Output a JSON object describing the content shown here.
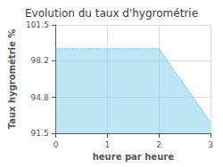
{
  "chart_data": {
    "type": "area",
    "title": "Evolution du taux d'hygrométrie",
    "xlabel": "heure par heure",
    "ylabel": "Taux hygrométrie %",
    "x": [
      0,
      2,
      3
    ],
    "values": [
      99.3,
      99.3,
      92.5
    ],
    "xlim": [
      0,
      3
    ],
    "xticks": [
      0,
      1,
      2,
      3
    ],
    "ylim": [
      91.5,
      101.5
    ],
    "yticks": [
      91.5,
      94.8,
      98.2,
      101.5
    ],
    "color": "#7dcbea",
    "line_style": "dotted",
    "grid": true
  }
}
